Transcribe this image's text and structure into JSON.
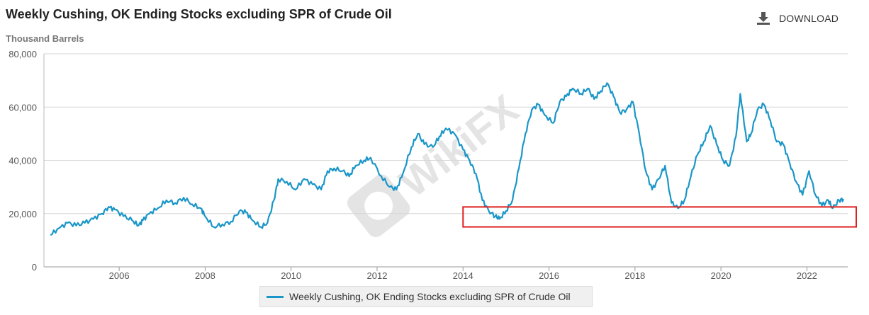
{
  "header": {
    "title": "Weekly Cushing, OK Ending Stocks excluding SPR of Crude Oil",
    "subtitle": "Thousand Barrels",
    "download_label": "DOWNLOAD"
  },
  "watermark": {
    "text": "WikiFX"
  },
  "colors": {
    "series": "#1a96c8",
    "highlight_box": "#e02020",
    "grid": "#d6d6d6"
  },
  "chart_data": {
    "type": "line",
    "title": "Weekly Cushing, OK Ending Stocks excluding SPR of Crude Oil",
    "ylabel": "Thousand Barrels",
    "xlim": [
      2004.25,
      2022.95
    ],
    "ylim": [
      0,
      80000
    ],
    "x_ticks": [
      "2006",
      "2008",
      "2010",
      "2012",
      "2014",
      "2016",
      "2018",
      "2020",
      "2022"
    ],
    "y_ticks": [
      "0",
      "20,000",
      "40,000",
      "60,000",
      "80,000"
    ],
    "grid": "horizontal",
    "legend": "bottom-center",
    "series": [
      {
        "name": "Weekly Cushing, OK Ending Stocks excluding SPR of Crude Oil",
        "points": [
          [
            2004.4,
            12000
          ],
          [
            2004.6,
            14500
          ],
          [
            2004.8,
            16500
          ],
          [
            2005.0,
            15500
          ],
          [
            2005.2,
            16500
          ],
          [
            2005.4,
            18000
          ],
          [
            2005.6,
            20000
          ],
          [
            2005.75,
            22500
          ],
          [
            2005.9,
            21500
          ],
          [
            2006.1,
            19000
          ],
          [
            2006.3,
            17500
          ],
          [
            2006.45,
            15500
          ],
          [
            2006.55,
            17500
          ],
          [
            2006.7,
            20000
          ],
          [
            2006.9,
            22000
          ],
          [
            2007.1,
            25000
          ],
          [
            2007.3,
            24000
          ],
          [
            2007.5,
            26000
          ],
          [
            2007.7,
            23500
          ],
          [
            2007.9,
            22000
          ],
          [
            2008.0,
            19000
          ],
          [
            2008.2,
            15000
          ],
          [
            2008.4,
            16000
          ],
          [
            2008.6,
            17000
          ],
          [
            2008.8,
            21000
          ],
          [
            2008.95,
            20500
          ],
          [
            2009.1,
            17500
          ],
          [
            2009.3,
            15000
          ],
          [
            2009.45,
            16500
          ],
          [
            2009.6,
            25000
          ],
          [
            2009.7,
            33000
          ],
          [
            2009.9,
            32000
          ],
          [
            2010.1,
            29000
          ],
          [
            2010.3,
            33000
          ],
          [
            2010.5,
            31000
          ],
          [
            2010.7,
            29000
          ],
          [
            2010.85,
            36000
          ],
          [
            2011.0,
            37000
          ],
          [
            2011.2,
            36000
          ],
          [
            2011.35,
            34000
          ],
          [
            2011.5,
            38000
          ],
          [
            2011.7,
            40000
          ],
          [
            2011.85,
            41000
          ],
          [
            2012.1,
            34000
          ],
          [
            2012.3,
            30000
          ],
          [
            2012.45,
            29000
          ],
          [
            2012.6,
            35000
          ],
          [
            2012.8,
            45000
          ],
          [
            2012.95,
            50000
          ],
          [
            2013.1,
            46000
          ],
          [
            2013.3,
            45000
          ],
          [
            2013.45,
            49000
          ],
          [
            2013.6,
            52000
          ],
          [
            2013.8,
            50000
          ],
          [
            2014.0,
            44000
          ],
          [
            2014.15,
            40000
          ],
          [
            2014.3,
            35000
          ],
          [
            2014.45,
            25000
          ],
          [
            2014.6,
            21000
          ],
          [
            2014.75,
            19000
          ],
          [
            2014.85,
            18000
          ],
          [
            2015.0,
            21000
          ],
          [
            2015.15,
            25000
          ],
          [
            2015.3,
            37000
          ],
          [
            2015.45,
            50000
          ],
          [
            2015.6,
            59000
          ],
          [
            2015.75,
            61000
          ],
          [
            2015.9,
            57000
          ],
          [
            2016.1,
            54000
          ],
          [
            2016.25,
            62000
          ],
          [
            2016.4,
            64000
          ],
          [
            2016.55,
            67000
          ],
          [
            2016.75,
            65000
          ],
          [
            2016.9,
            67000
          ],
          [
            2017.05,
            63000
          ],
          [
            2017.2,
            66000
          ],
          [
            2017.35,
            69000
          ],
          [
            2017.5,
            64000
          ],
          [
            2017.65,
            58000
          ],
          [
            2017.8,
            59000
          ],
          [
            2017.95,
            62000
          ],
          [
            2018.1,
            50000
          ],
          [
            2018.25,
            36000
          ],
          [
            2018.4,
            29000
          ],
          [
            2018.55,
            33000
          ],
          [
            2018.7,
            38000
          ],
          [
            2018.85,
            24000
          ],
          [
            2019.0,
            22000
          ],
          [
            2019.15,
            25000
          ],
          [
            2019.3,
            34000
          ],
          [
            2019.45,
            42000
          ],
          [
            2019.6,
            47000
          ],
          [
            2019.75,
            53000
          ],
          [
            2019.9,
            46000
          ],
          [
            2020.05,
            40000
          ],
          [
            2020.2,
            38000
          ],
          [
            2020.35,
            49000
          ],
          [
            2020.45,
            65000
          ],
          [
            2020.6,
            47000
          ],
          [
            2020.7,
            50000
          ],
          [
            2020.85,
            59000
          ],
          [
            2021.0,
            61000
          ],
          [
            2021.15,
            55000
          ],
          [
            2021.3,
            47000
          ],
          [
            2021.45,
            46000
          ],
          [
            2021.6,
            39000
          ],
          [
            2021.75,
            32000
          ],
          [
            2021.9,
            27000
          ],
          [
            2022.05,
            36000
          ],
          [
            2022.2,
            27000
          ],
          [
            2022.35,
            23000
          ],
          [
            2022.5,
            25000
          ],
          [
            2022.6,
            22000
          ],
          [
            2022.75,
            25000
          ],
          [
            2022.85,
            25500
          ]
        ]
      }
    ],
    "annotation": {
      "type": "rectangle",
      "x_range": [
        2014.05,
        2022.95
      ],
      "y_range": [
        15000,
        22500
      ]
    }
  }
}
